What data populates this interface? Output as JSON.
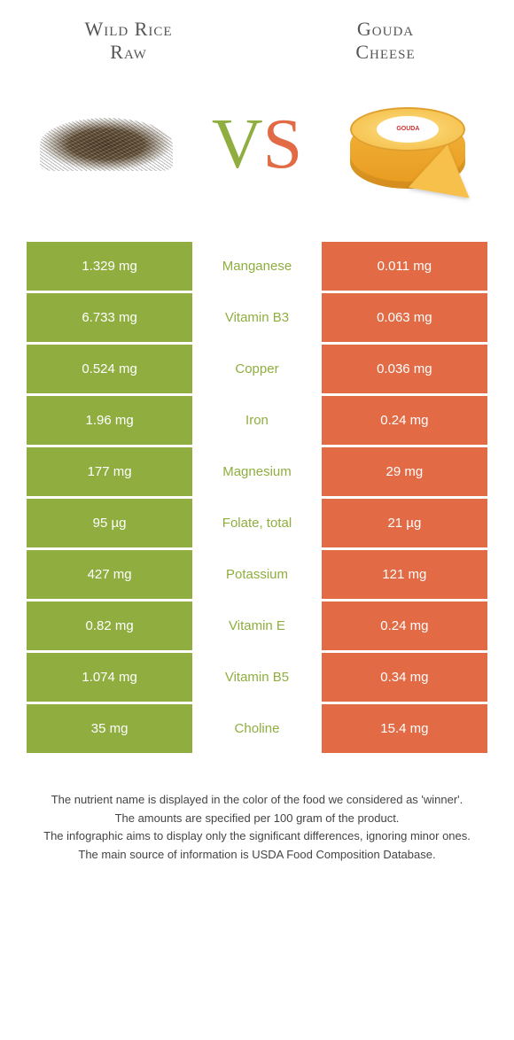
{
  "colors": {
    "left_food": "#8fae3f",
    "right_food": "#e26a45",
    "label_green": "#8fae3f",
    "label_orange": "#e26a45",
    "text_gray": "#555555"
  },
  "header": {
    "left_line1": "Wild Rice",
    "left_line2": "Raw",
    "right_line1": "Gouda",
    "right_line2": "Cheese"
  },
  "vs": {
    "v": "V",
    "s": "S"
  },
  "rows": [
    {
      "left": "1.329 mg",
      "label": "Manganese",
      "right": "0.011 mg",
      "winner": "left"
    },
    {
      "left": "6.733 mg",
      "label": "Vitamin B3",
      "right": "0.063 mg",
      "winner": "left"
    },
    {
      "left": "0.524 mg",
      "label": "Copper",
      "right": "0.036 mg",
      "winner": "left"
    },
    {
      "left": "1.96 mg",
      "label": "Iron",
      "right": "0.24 mg",
      "winner": "left"
    },
    {
      "left": "177 mg",
      "label": "Magnesium",
      "right": "29 mg",
      "winner": "left"
    },
    {
      "left": "95 µg",
      "label": "Folate, total",
      "right": "21 µg",
      "winner": "left"
    },
    {
      "left": "427 mg",
      "label": "Potassium",
      "right": "121 mg",
      "winner": "left"
    },
    {
      "left": "0.82 mg",
      "label": "Vitamin E",
      "right": "0.24 mg",
      "winner": "left"
    },
    {
      "left": "1.074 mg",
      "label": "Vitamin B5",
      "right": "0.34 mg",
      "winner": "left"
    },
    {
      "left": "35 mg",
      "label": "Choline",
      "right": "15.4 mg",
      "winner": "left"
    }
  ],
  "footnotes": [
    "The nutrient name is displayed in the color of the food we considered as 'winner'.",
    "The amounts are specified per 100 gram of the product.",
    "The infographic aims to display only the significant differences, ignoring minor ones.",
    "The main source of information is USDA Food Composition Database."
  ]
}
